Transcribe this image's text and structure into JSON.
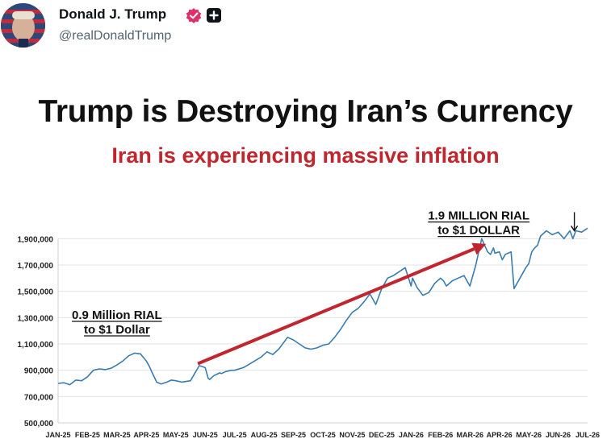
{
  "post": {
    "author_name": "Donald J. Trump",
    "handle": "@realDonaldTrump",
    "verified_color": "#e0306b"
  },
  "chart_data": {
    "type": "line",
    "title": "Trump is Destroying Iran’s Currency",
    "subtitle": "Iran is experiencing massive inflation",
    "xlabel": "",
    "ylabel": "",
    "ylim": [
      500000,
      2000000
    ],
    "grid": true,
    "line_color": "#3a7cb0",
    "arrow_color": "#c0262d",
    "x_ticks": [
      "JAN-25",
      "FEB-25",
      "MAR-25",
      "APR-25",
      "MAY-25",
      "JUN-25",
      "JUL-25",
      "AUG-25",
      "SEP-25",
      "OCT-25",
      "NOV-25",
      "DEC-25",
      "JAN-26",
      "FEB-26",
      "MAR-26",
      "APR-26",
      "MAY-26",
      "JUN-26",
      "JUL-26"
    ],
    "y_ticks": [
      500000,
      700000,
      900000,
      1100000,
      1300000,
      1500000,
      1700000,
      1900000
    ],
    "y_tick_labels": [
      "500,000",
      "700,000",
      "900,000",
      "1,100,000",
      "1,300,000",
      "1,500,000",
      "1,700,000",
      "1,900,000"
    ],
    "series": [
      {
        "x": [
          0,
          0.2,
          0.4,
          0.6,
          0.8,
          1.0,
          1.2,
          1.4,
          1.6,
          1.8,
          2.0,
          2.2,
          2.4,
          2.6,
          2.8,
          3.0,
          3.1,
          3.2,
          3.35,
          3.5,
          3.7,
          3.85,
          4.0,
          4.2,
          4.5,
          4.8,
          5.0,
          5.1,
          5.15,
          5.3,
          5.4,
          5.5,
          5.55,
          5.7,
          5.9,
          6.0,
          6.3,
          6.6,
          6.9,
          7.1,
          7.3,
          7.5,
          7.8,
          8.0,
          8.2,
          8.4,
          8.6,
          8.8,
          9.0,
          9.2,
          9.4,
          9.6,
          9.8,
          10.0,
          10.2,
          10.4,
          10.6,
          10.8,
          11.0,
          11.2,
          11.4,
          11.6,
          11.8,
          12.0,
          12.05,
          12.2,
          12.4,
          12.6,
          12.8,
          13.0,
          13.1,
          13.2,
          13.4,
          13.6,
          13.8,
          14.0,
          14.2,
          14.4,
          14.6,
          14.7,
          14.8,
          14.85,
          15.0,
          15.1,
          15.2,
          15.4,
          15.5,
          15.7,
          15.9,
          16.0,
          16.1,
          16.2,
          16.3,
          16.4,
          16.6,
          16.8,
          17.0,
          17.2,
          17.4,
          17.5,
          17.6,
          17.8,
          18.0
        ],
        "y": [
          800000,
          805000,
          790000,
          825000,
          820000,
          850000,
          900000,
          910000,
          905000,
          915000,
          940000,
          970000,
          1010000,
          1030000,
          1025000,
          970000,
          930000,
          880000,
          810000,
          795000,
          810000,
          825000,
          820000,
          810000,
          820000,
          935000,
          920000,
          840000,
          830000,
          860000,
          870000,
          880000,
          875000,
          890000,
          900000,
          900000,
          920000,
          960000,
          1000000,
          1040000,
          1020000,
          1060000,
          1150000,
          1130000,
          1100000,
          1070000,
          1060000,
          1070000,
          1090000,
          1100000,
          1150000,
          1210000,
          1280000,
          1340000,
          1370000,
          1420000,
          1480000,
          1400000,
          1520000,
          1600000,
          1620000,
          1650000,
          1680000,
          1540000,
          1600000,
          1530000,
          1470000,
          1490000,
          1560000,
          1600000,
          1580000,
          1540000,
          1580000,
          1600000,
          1620000,
          1540000,
          1700000,
          1900000,
          1800000,
          1780000,
          1830000,
          1790000,
          1800000,
          1740000,
          1780000,
          1800000,
          1520000,
          1600000,
          1680000,
          1710000,
          1800000,
          1830000,
          1850000,
          1920000,
          1960000,
          1930000,
          1950000,
          1900000,
          1960000,
          1900000,
          1960000,
          1950000,
          1980000
        ]
      }
    ],
    "annotations": {
      "start_lines": [
        "0.9 Million RIAL",
        "to $1 Dollar"
      ],
      "start_at": {
        "x": 2.0,
        "y": 1290000
      },
      "end_lines": [
        "1.9 MILLION RIAL",
        "to $1 DOLLAR"
      ],
      "end_at": {
        "x": 14.3,
        "y": 2045000
      },
      "trend_arrow": {
        "from": {
          "x": 4.75,
          "y": 950000
        },
        "to": {
          "x": 14.55,
          "y": 1860000
        }
      },
      "end_marker": {
        "x": 17.55,
        "y": 1930000
      }
    }
  }
}
